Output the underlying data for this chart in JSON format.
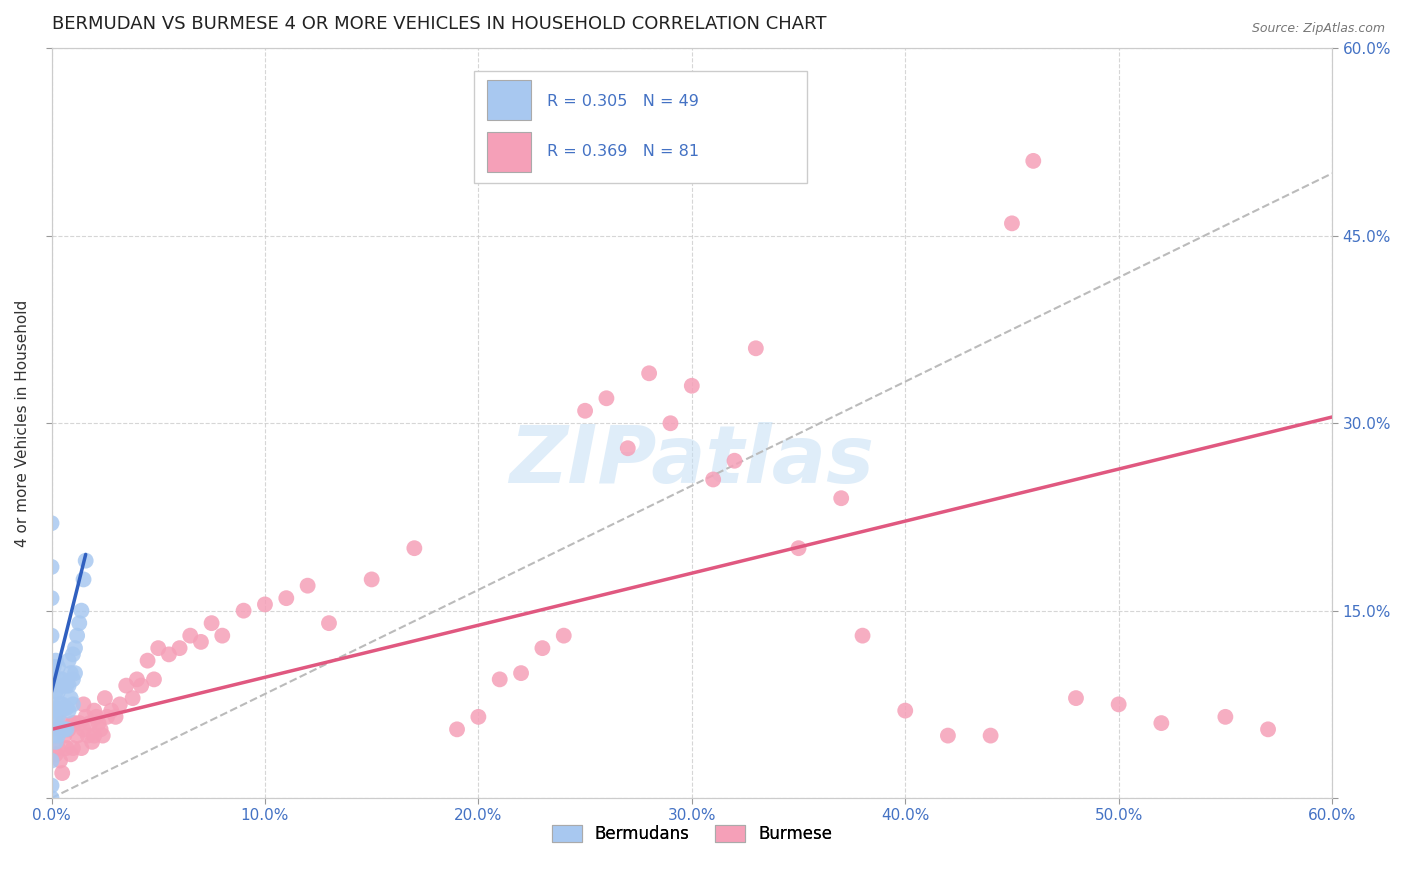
{
  "title": "BERMUDAN VS BURMESE 4 OR MORE VEHICLES IN HOUSEHOLD CORRELATION CHART",
  "source": "Source: ZipAtlas.com",
  "ylabel": "4 or more Vehicles in Household",
  "xlim": [
    0.0,
    0.6
  ],
  "ylim": [
    0.0,
    0.6
  ],
  "xticks": [
    0.0,
    0.1,
    0.2,
    0.3,
    0.4,
    0.5,
    0.6
  ],
  "yticks": [
    0.0,
    0.15,
    0.3,
    0.45,
    0.6
  ],
  "watermark": "ZIPatlas",
  "bermudans_R": 0.305,
  "bermudans_N": 49,
  "burmese_R": 0.369,
  "burmese_N": 81,
  "bermudans_color": "#a8c8f0",
  "burmese_color": "#f5a0b8",
  "bermudans_line_color": "#3060c0",
  "burmese_line_color": "#e05880",
  "grid_color": "#cccccc",
  "background_color": "#ffffff",
  "title_fontsize": 13,
  "axis_label_fontsize": 11,
  "tick_fontsize": 11,
  "bermudans_x": [
    0.0,
    0.0,
    0.0,
    0.0,
    0.0,
    0.0,
    0.0,
    0.0,
    0.0,
    0.0,
    0.001,
    0.001,
    0.001,
    0.001,
    0.002,
    0.002,
    0.002,
    0.002,
    0.003,
    0.003,
    0.003,
    0.003,
    0.004,
    0.004,
    0.004,
    0.005,
    0.005,
    0.005,
    0.006,
    0.006,
    0.006,
    0.007,
    0.007,
    0.007,
    0.008,
    0.008,
    0.008,
    0.009,
    0.009,
    0.01,
    0.01,
    0.01,
    0.011,
    0.011,
    0.012,
    0.013,
    0.014,
    0.015,
    0.016
  ],
  "bermudans_y": [
    0.22,
    0.185,
    0.16,
    0.13,
    0.1,
    0.075,
    0.055,
    0.03,
    0.01,
    0.0,
    0.105,
    0.09,
    0.07,
    0.05,
    0.11,
    0.085,
    0.065,
    0.045,
    0.105,
    0.085,
    0.065,
    0.05,
    0.095,
    0.075,
    0.055,
    0.095,
    0.075,
    0.055,
    0.09,
    0.072,
    0.055,
    0.09,
    0.072,
    0.055,
    0.11,
    0.09,
    0.07,
    0.1,
    0.08,
    0.115,
    0.095,
    0.075,
    0.12,
    0.1,
    0.13,
    0.14,
    0.15,
    0.175,
    0.19
  ],
  "burmese_x": [
    0.0,
    0.002,
    0.003,
    0.004,
    0.005,
    0.005,
    0.006,
    0.007,
    0.008,
    0.009,
    0.01,
    0.01,
    0.011,
    0.012,
    0.013,
    0.014,
    0.015,
    0.015,
    0.016,
    0.017,
    0.018,
    0.019,
    0.02,
    0.02,
    0.021,
    0.022,
    0.023,
    0.024,
    0.025,
    0.026,
    0.028,
    0.03,
    0.032,
    0.035,
    0.038,
    0.04,
    0.042,
    0.045,
    0.048,
    0.05,
    0.055,
    0.06,
    0.065,
    0.07,
    0.075,
    0.08,
    0.09,
    0.1,
    0.11,
    0.12,
    0.13,
    0.15,
    0.17,
    0.19,
    0.2,
    0.21,
    0.22,
    0.23,
    0.24,
    0.25,
    0.26,
    0.27,
    0.28,
    0.29,
    0.3,
    0.31,
    0.32,
    0.33,
    0.35,
    0.37,
    0.38,
    0.4,
    0.42,
    0.44,
    0.45,
    0.46,
    0.48,
    0.5,
    0.52,
    0.55,
    0.57
  ],
  "burmese_y": [
    0.055,
    0.035,
    0.04,
    0.03,
    0.06,
    0.02,
    0.05,
    0.04,
    0.055,
    0.035,
    0.06,
    0.04,
    0.06,
    0.05,
    0.06,
    0.04,
    0.075,
    0.055,
    0.065,
    0.05,
    0.06,
    0.045,
    0.07,
    0.05,
    0.065,
    0.06,
    0.055,
    0.05,
    0.08,
    0.065,
    0.07,
    0.065,
    0.075,
    0.09,
    0.08,
    0.095,
    0.09,
    0.11,
    0.095,
    0.12,
    0.115,
    0.12,
    0.13,
    0.125,
    0.14,
    0.13,
    0.15,
    0.155,
    0.16,
    0.17,
    0.14,
    0.175,
    0.2,
    0.055,
    0.065,
    0.095,
    0.1,
    0.12,
    0.13,
    0.31,
    0.32,
    0.28,
    0.34,
    0.3,
    0.33,
    0.255,
    0.27,
    0.36,
    0.2,
    0.24,
    0.13,
    0.07,
    0.05,
    0.05,
    0.46,
    0.51,
    0.08,
    0.075,
    0.06,
    0.065,
    0.055
  ],
  "berm_line_x": [
    0.0,
    0.016
  ],
  "berm_line_y": [
    0.085,
    0.195
  ],
  "bur_line_x": [
    0.0,
    0.6
  ],
  "bur_line_y": [
    0.055,
    0.305
  ],
  "dash_line_x": [
    0.0,
    0.6
  ],
  "dash_line_y": [
    0.0,
    0.5
  ]
}
